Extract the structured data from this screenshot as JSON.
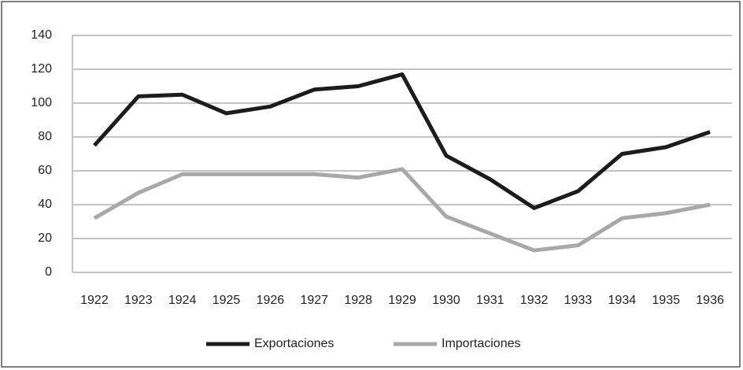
{
  "chart_data": {
    "type": "line",
    "categories": [
      "1922",
      "1923",
      "1924",
      "1925",
      "1926",
      "1927",
      "1928",
      "1929",
      "1930",
      "1931",
      "1932",
      "1933",
      "1934",
      "1935",
      "1936"
    ],
    "series": [
      {
        "name": "Exportaciones",
        "color": "#1c1c1c",
        "values": [
          75,
          104,
          105,
          94,
          98,
          108,
          110,
          117,
          69,
          55,
          38,
          48,
          70,
          74,
          83
        ]
      },
      {
        "name": "Importaciones",
        "color": "#a8a8a8",
        "values": [
          32,
          47,
          58,
          58,
          58,
          58,
          56,
          61,
          33,
          23,
          13,
          16,
          32,
          35,
          40
        ]
      }
    ],
    "ylim": [
      0,
      140
    ],
    "yticks": [
      0,
      20,
      40,
      60,
      80,
      100,
      120,
      140
    ],
    "grid": true,
    "legend": "bottom"
  }
}
